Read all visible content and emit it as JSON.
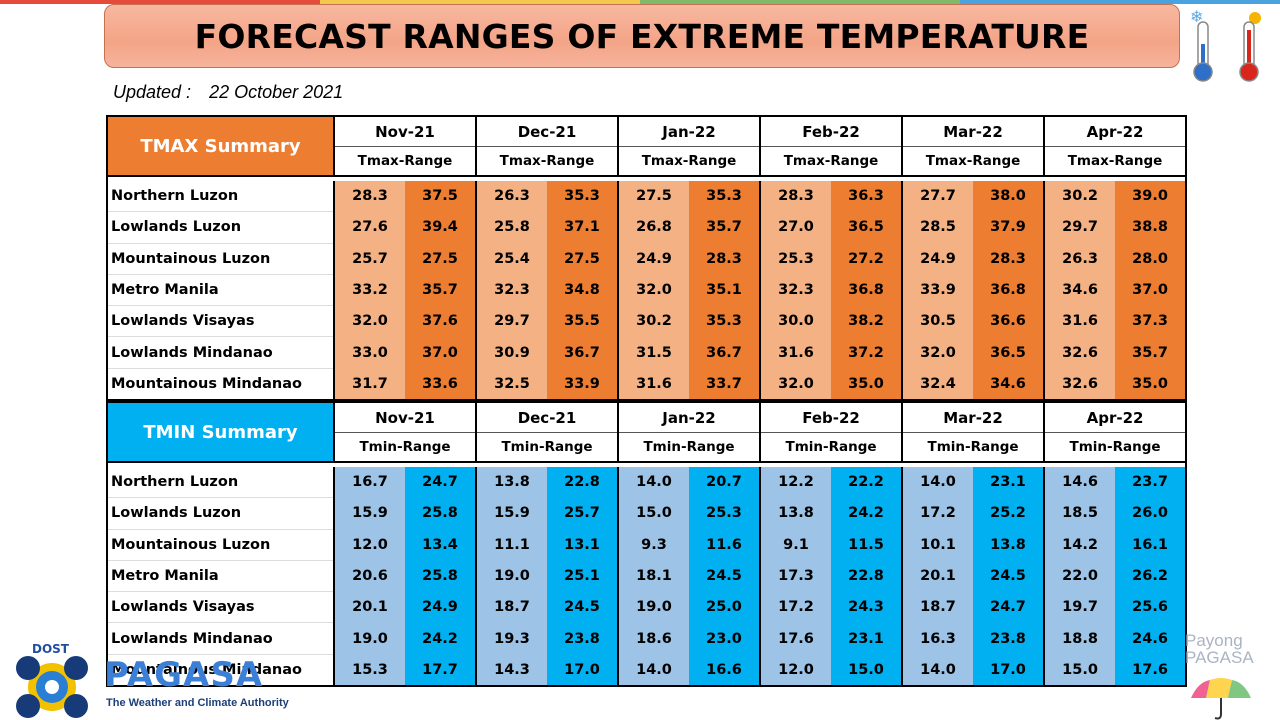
{
  "header": {
    "title": "FORECAST RANGES OF EXTREME TEMPERATURE",
    "updated_label": "Updated :",
    "updated_date": "22 October 2021"
  },
  "months": [
    "Nov-21",
    "Dec-21",
    "Jan-22",
    "Feb-22",
    "Mar-22",
    "Apr-22"
  ],
  "tmax": {
    "summary_label": "TMAX Summary",
    "range_label": "Tmax-Range",
    "rows": [
      {
        "region": "Northern Luzon",
        "values": [
          "28.3",
          "37.5",
          "26.3",
          "35.3",
          "27.5",
          "35.3",
          "28.3",
          "36.3",
          "27.7",
          "38.0",
          "30.2",
          "39.0"
        ]
      },
      {
        "region": "Lowlands Luzon",
        "values": [
          "27.6",
          "39.4",
          "25.8",
          "37.1",
          "26.8",
          "35.7",
          "27.0",
          "36.5",
          "28.5",
          "37.9",
          "29.7",
          "38.8"
        ]
      },
      {
        "region": "Mountainous Luzon",
        "values": [
          "25.7",
          "27.5",
          "25.4",
          "27.5",
          "24.9",
          "28.3",
          "25.3",
          "27.2",
          "24.9",
          "28.3",
          "26.3",
          "28.0"
        ]
      },
      {
        "region": "Metro Manila",
        "values": [
          "33.2",
          "35.7",
          "32.3",
          "34.8",
          "32.0",
          "35.1",
          "32.3",
          "36.8",
          "33.9",
          "36.8",
          "34.6",
          "37.0"
        ]
      },
      {
        "region": "Lowlands Visayas",
        "values": [
          "32.0",
          "37.6",
          "29.7",
          "35.5",
          "30.2",
          "35.3",
          "30.0",
          "38.2",
          "30.5",
          "36.6",
          "31.6",
          "37.3"
        ]
      },
      {
        "region": "Lowlands Mindanao",
        "values": [
          "33.0",
          "37.0",
          "30.9",
          "36.7",
          "31.5",
          "36.7",
          "31.6",
          "37.2",
          "32.0",
          "36.5",
          "32.6",
          "35.7"
        ]
      },
      {
        "region": "Mountainous Mindanao",
        "values": [
          "31.7",
          "33.6",
          "32.5",
          "33.9",
          "31.6",
          "33.7",
          "32.0",
          "35.0",
          "32.4",
          "34.6",
          "32.6",
          "35.0"
        ]
      }
    ]
  },
  "tmin": {
    "summary_label": "TMIN Summary",
    "range_label": "Tmin-Range",
    "rows": [
      {
        "region": "Northern Luzon",
        "values": [
          "16.7",
          "24.7",
          "13.8",
          "22.8",
          "14.0",
          "20.7",
          "12.2",
          "22.2",
          "14.0",
          "23.1",
          "14.6",
          "23.7"
        ]
      },
      {
        "region": "Lowlands Luzon",
        "values": [
          "15.9",
          "25.8",
          "15.9",
          "25.7",
          "15.0",
          "25.3",
          "13.8",
          "24.2",
          "17.2",
          "25.2",
          "18.5",
          "26.0"
        ]
      },
      {
        "region": "Mountainous Luzon",
        "values": [
          "12.0",
          "13.4",
          "11.1",
          "13.1",
          "9.3",
          "11.6",
          "9.1",
          "11.5",
          "10.1",
          "13.8",
          "14.2",
          "16.1"
        ]
      },
      {
        "region": "Metro Manila",
        "values": [
          "20.6",
          "25.8",
          "19.0",
          "25.1",
          "18.1",
          "24.5",
          "17.3",
          "22.8",
          "20.1",
          "24.5",
          "22.0",
          "26.2"
        ]
      },
      {
        "region": "Lowlands Visayas",
        "values": [
          "20.1",
          "24.9",
          "18.7",
          "24.5",
          "19.0",
          "25.0",
          "17.2",
          "24.3",
          "18.7",
          "24.7",
          "19.7",
          "25.6"
        ]
      },
      {
        "region": "Lowlands Mindanao",
        "values": [
          "19.0",
          "24.2",
          "19.3",
          "23.8",
          "18.6",
          "23.0",
          "17.6",
          "23.1",
          "16.3",
          "23.8",
          "18.8",
          "24.6"
        ]
      },
      {
        "region": "Mountainous Mindanao",
        "values": [
          "15.3",
          "17.7",
          "14.3",
          "17.0",
          "14.0",
          "16.6",
          "12.0",
          "15.0",
          "14.0",
          "17.0",
          "15.0",
          "17.6"
        ]
      }
    ]
  },
  "footer": {
    "dost": "DOST",
    "pagasa": "PAGASA",
    "tagline": "The Weather and Climate Authority",
    "payong_line1": "Payong",
    "payong_line2": "PAGASA"
  },
  "colors": {
    "tmax_light": "#f4b183",
    "tmax_dark": "#ed7d31",
    "tmin_light": "#9dc3e6",
    "tmin_dark": "#00b0f0",
    "title_bg": "#f4a487"
  },
  "icons": [
    "cold-thermometer-icon",
    "hot-thermometer-icon",
    "pagasa-logo-icon",
    "umbrella-icon"
  ]
}
